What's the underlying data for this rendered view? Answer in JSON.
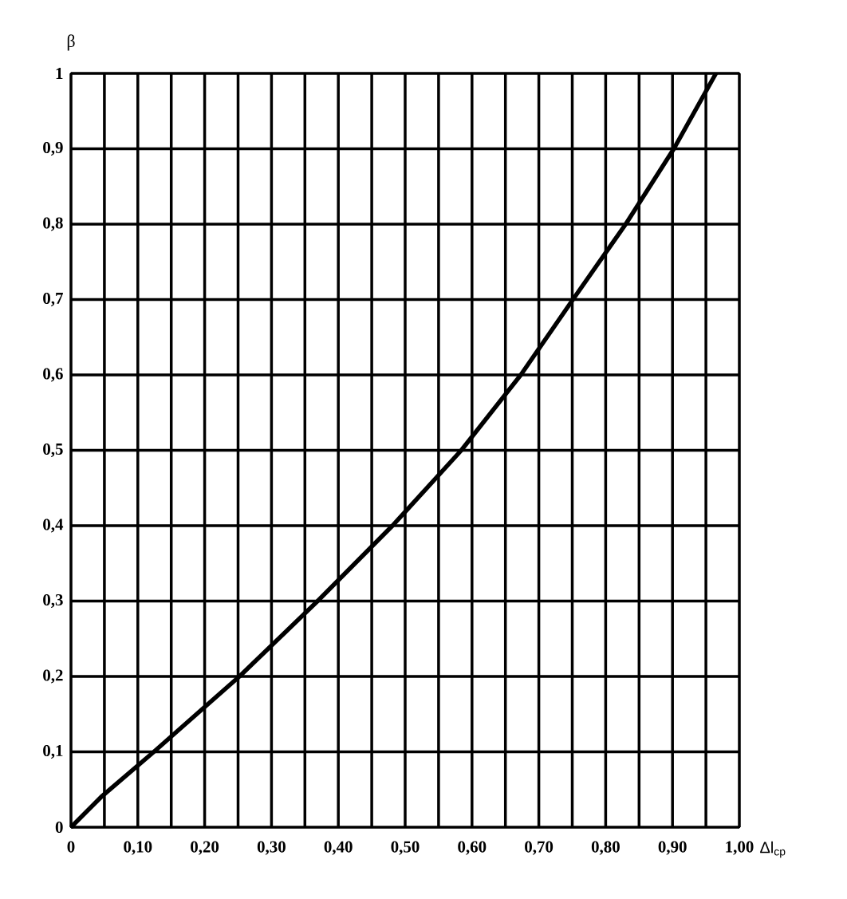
{
  "chart_data": {
    "type": "line",
    "xlabel": "Δl$_{ср}$",
    "ylabel": "β",
    "x": [
      0,
      0.045,
      0.124,
      0.252,
      0.369,
      0.481,
      0.584,
      0.673,
      0.751,
      0.83,
      0.902,
      0.965
    ],
    "values": [
      0,
      0.04,
      0.1,
      0.2,
      0.3,
      0.4,
      0.5,
      0.6,
      0.7,
      0.8,
      0.9,
      1.0
    ],
    "color": "#000000",
    "line_style": "solid",
    "marker": "none",
    "grid": true,
    "xlim": [
      0,
      1
    ],
    "ylim": [
      0,
      1
    ],
    "xticks": [
      {
        "value": 0,
        "label": "0"
      },
      {
        "value": 0.05,
        "label": null
      },
      {
        "value": 0.1,
        "label": "0,10"
      },
      {
        "value": 0.15,
        "label": null
      },
      {
        "value": 0.2,
        "label": "0,20"
      },
      {
        "value": 0.25,
        "label": null
      },
      {
        "value": 0.3,
        "label": "0,30"
      },
      {
        "value": 0.35,
        "label": null
      },
      {
        "value": 0.4,
        "label": "0,40"
      },
      {
        "value": 0.45,
        "label": null
      },
      {
        "value": 0.5,
        "label": "0,50"
      },
      {
        "value": 0.55,
        "label": null
      },
      {
        "value": 0.6,
        "label": "0,60"
      },
      {
        "value": 0.65,
        "label": null
      },
      {
        "value": 0.7,
        "label": "0,70"
      },
      {
        "value": 0.75,
        "label": null
      },
      {
        "value": 0.8,
        "label": "0,80"
      },
      {
        "value": 0.85,
        "label": null
      },
      {
        "value": 0.9,
        "label": "0,90"
      },
      {
        "value": 0.95,
        "label": null
      },
      {
        "value": 1,
        "label": "1,00"
      }
    ],
    "yticks": [
      {
        "value": 0,
        "label": "0"
      },
      {
        "value": 0.1,
        "label": "0,1"
      },
      {
        "value": 0.2,
        "label": "0,2"
      },
      {
        "value": 0.3,
        "label": "0,3"
      },
      {
        "value": 0.4,
        "label": "0,4"
      },
      {
        "value": 0.5,
        "label": "0,5"
      },
      {
        "value": 0.6,
        "label": "0,6"
      },
      {
        "value": 0.7,
        "label": "0,7"
      },
      {
        "value": 0.8,
        "label": "0,8"
      },
      {
        "value": 0.9,
        "label": "0,9"
      },
      {
        "value": 1,
        "label": "1"
      }
    ]
  }
}
